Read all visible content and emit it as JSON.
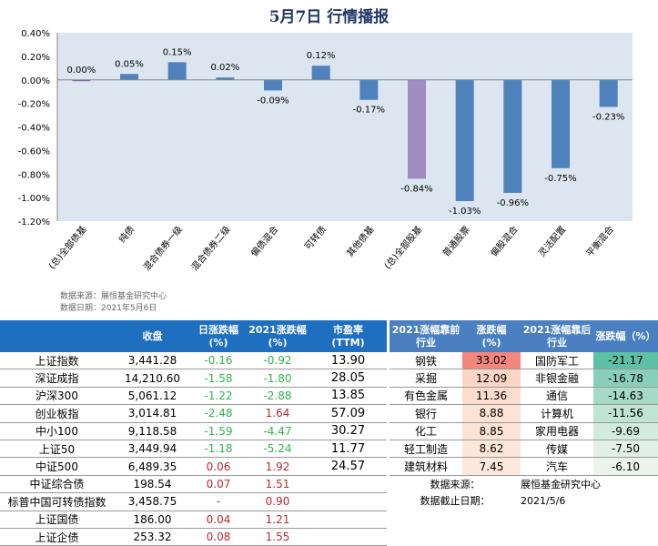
{
  "title": "5月7日  行情播报",
  "chart_data": {
    "type": "bar",
    "title": "5月7日  行情播报",
    "categories": [
      "(总)全部债基",
      "纯债",
      "混合债券一级",
      "混合债券二级",
      "偏债混合",
      "可转债",
      "其他债基",
      "(总)全部股基",
      "普通股票",
      "偏股混合",
      "灵活配置",
      "平衡混合"
    ],
    "values": [
      0.0,
      0.05,
      0.15,
      0.02,
      -0.09,
      0.12,
      -0.17,
      -0.84,
      -1.03,
      -0.96,
      -0.75,
      -0.23
    ],
    "labels": [
      "0.00%",
      "0.05%",
      "0.15%",
      "0.02%",
      "-0.09%",
      "0.12%",
      "-0.17%",
      "-0.84%",
      "-1.03%",
      "-0.96%",
      "-0.75%",
      "-0.23%"
    ],
    "ylim": [
      -1.2,
      0.4
    ],
    "yticks": [
      "0.40%",
      "0.20%",
      "0.00%",
      "-0.20%",
      "-0.40%",
      "-0.60%",
      "-0.80%",
      "-1.00%",
      "-1.20%"
    ],
    "colors": {
      "bar": "#4f81bd",
      "highlight": "#a08cc4",
      "bg": "#dce6f1"
    }
  },
  "chart_source": "数据来源：展恒基金研究中心",
  "chart_date": "数据日期：2021年5月6日",
  "left_table": {
    "headers": [
      "",
      "收盘",
      "日涨跌幅\n(%)",
      "2021涨跌幅\n(%)",
      "市盈率\n(TTM)"
    ],
    "rows": [
      [
        "上证指数",
        "3,441.28",
        "-0.16",
        "-0.92",
        "13.90"
      ],
      [
        "深证成指",
        "14,210.60",
        "-1.58",
        "-1.80",
        "28.05"
      ],
      [
        "沪深300",
        "5,061.12",
        "-1.22",
        "-2.88",
        "13.85"
      ],
      [
        "创业板指",
        "3,014.81",
        "-2.48",
        "1.64",
        "57.09"
      ],
      [
        "中小100",
        "9,118.58",
        "-1.59",
        "-4.47",
        "30.27"
      ],
      [
        "上证50",
        "3,449.94",
        "-1.18",
        "-5.24",
        "11.77"
      ],
      [
        "中证500",
        "6,489.35",
        "0.06",
        "1.92",
        "24.57"
      ],
      [
        "中证综合债",
        "198.54",
        "0.07",
        "1.51",
        ""
      ],
      [
        "标普中国可转债指数",
        "3,458.75",
        "-",
        "0.90",
        ""
      ],
      [
        "上证国债",
        "186.00",
        "0.04",
        "1.21",
        ""
      ],
      [
        "上证企债",
        "253.32",
        "0.08",
        "1.55",
        ""
      ]
    ]
  },
  "right_table": {
    "headers": [
      "2021涨幅靠前\n行业",
      "涨跌幅\n(%)",
      "2021涨幅靠后\n行业",
      "涨跌幅（%）"
    ],
    "rows": [
      [
        "钢铁",
        "33.02",
        "国防军工",
        "-21.17"
      ],
      [
        "采掘",
        "12.09",
        "非银金融",
        "-16.78"
      ],
      [
        "有色金属",
        "11.36",
        "通信",
        "-14.63"
      ],
      [
        "银行",
        "8.88",
        "计算机",
        "-11.56"
      ],
      [
        "化工",
        "8.85",
        "家用电器",
        "-9.69"
      ],
      [
        "轻工制造",
        "8.62",
        "传媒",
        "-7.50"
      ],
      [
        "建筑材料",
        "7.45",
        "汽车",
        "-6.10"
      ]
    ],
    "top_colors": [
      "#f4877b",
      "#fbd5c5",
      "#fcdccc",
      "#fde3d6",
      "#fde3d6",
      "#fde6da",
      "#fde8dd"
    ],
    "bottom_colors": [
      "#5cc0a6",
      "#89d0bb",
      "#a5dac9",
      "#bfe4d5",
      "#d2ebdf",
      "#e0f0e6",
      "#ebf4ea"
    ],
    "source_label": "数据来源：",
    "source_value": "展恒基金研究中心",
    "date_label": "数据截止日期：",
    "date_value": "2021/5/6"
  }
}
